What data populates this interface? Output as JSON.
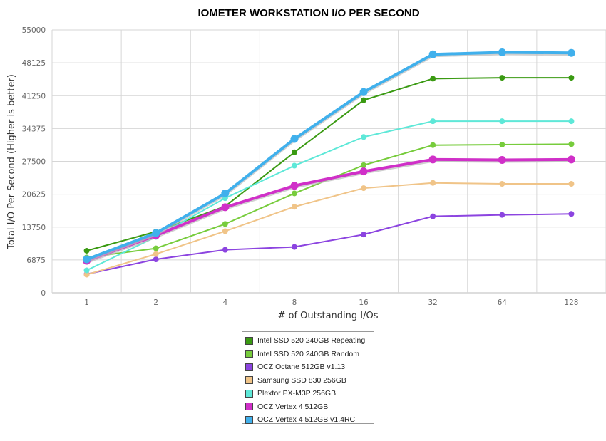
{
  "chart_data": {
    "type": "line",
    "title": "IOMETER WORKSTATION I/O PER SECOND",
    "xlabel": "# of Outstanding I/Os",
    "ylabel": "Total I/O Per Second (Higher is better)",
    "categories": [
      "1",
      "2",
      "4",
      "8",
      "16",
      "32",
      "64",
      "128"
    ],
    "ylim": [
      0,
      55000
    ],
    "yticks": [
      "0",
      "6875",
      "13750",
      "20625",
      "27500",
      "34375",
      "41250",
      "48125",
      "55000"
    ],
    "grid": true,
    "legend_position": "bottom",
    "series": [
      {
        "name": "Intel SSD 520 240GB Repeating",
        "color": "#3a9a12",
        "values": [
          8800,
          12800,
          18100,
          29400,
          40300,
          44800,
          45000,
          45000
        ]
      },
      {
        "name": "Intel SSD 520 240GB Random",
        "color": "#77cc3c",
        "values": [
          7400,
          9300,
          14400,
          20800,
          26700,
          30900,
          31000,
          31100
        ]
      },
      {
        "name": "OCZ Octane 512GB v1.13",
        "color": "#8c44e0",
        "values": [
          3900,
          7000,
          9000,
          9600,
          12200,
          16000,
          16300,
          16500
        ]
      },
      {
        "name": "Samsung SSD 830 256GB",
        "color": "#f0c488",
        "values": [
          3800,
          8100,
          12900,
          18000,
          21900,
          23000,
          22800,
          22800
        ]
      },
      {
        "name": "Plextor PX-M3P 256GB",
        "color": "#5ee8d8",
        "values": [
          4700,
          11700,
          19800,
          26600,
          32600,
          35900,
          35900,
          35900
        ]
      },
      {
        "name": "OCZ Vertex 4 512GB",
        "color": "#d030c8",
        "values": [
          6700,
          12000,
          17900,
          22400,
          25400,
          27900,
          27800,
          27900
        ]
      },
      {
        "name": "OCZ Vertex 4 512GB v1.4RC",
        "color": "#40b0ec",
        "values": [
          7000,
          12500,
          20800,
          32200,
          42000,
          49900,
          50300,
          50200
        ]
      }
    ]
  }
}
